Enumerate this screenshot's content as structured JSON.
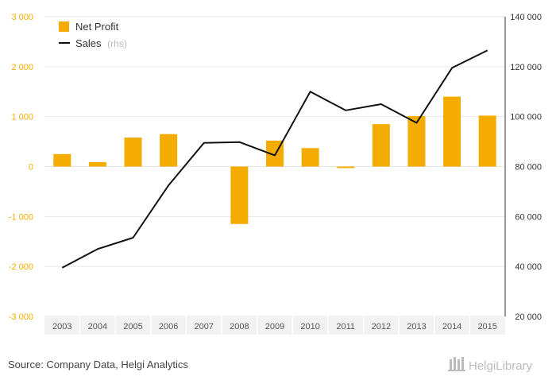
{
  "chart_data": {
    "type": "bar",
    "categories": [
      "2003",
      "2004",
      "2005",
      "2006",
      "2007",
      "2008",
      "2009",
      "2010",
      "2011",
      "2012",
      "2013",
      "2014",
      "2015"
    ],
    "series": [
      {
        "name": "Net Profit",
        "type": "bar",
        "axis": "left",
        "values": [
          250,
          90,
          580,
          650,
          0,
          -1150,
          520,
          370,
          -30,
          850,
          1010,
          1400,
          1020
        ]
      },
      {
        "name": "Sales",
        "type": "line",
        "axis": "right",
        "values": [
          39500,
          47000,
          51500,
          72500,
          89500,
          89800,
          84500,
          110000,
          102500,
          105000,
          97500,
          119500,
          126500
        ]
      }
    ],
    "y_left": {
      "ylim": [
        -3000,
        3000
      ],
      "ticks": [
        "3 000",
        "2 000",
        "1 000",
        "0",
        "-1 000",
        "-2 000",
        "-3 000"
      ],
      "tick_values": [
        3000,
        2000,
        1000,
        0,
        -1000,
        -2000,
        -3000
      ]
    },
    "y_right": {
      "ylim": [
        20000,
        140000
      ],
      "ticks": [
        "140 000",
        "120 000",
        "100 000",
        "80 000",
        "60 000",
        "40 000",
        "20 000"
      ],
      "tick_values": [
        140000,
        120000,
        100000,
        80000,
        60000,
        40000,
        20000
      ]
    },
    "legend": {
      "position": "top-left",
      "items": [
        {
          "label": "Net Profit",
          "suffix": ""
        },
        {
          "label": "Sales",
          "suffix": "(rhs)"
        }
      ]
    },
    "grid": true
  },
  "source_text": "Source: Company Data, Helgi Analytics",
  "logo_text": "HelgiLibrary",
  "colors": {
    "bar": "#f5ac00",
    "line": "#111111",
    "left_tick": "#f5ac00",
    "right_tick": "#333333",
    "grid": "#e6e6e6",
    "muted": "#bbbbbb"
  }
}
